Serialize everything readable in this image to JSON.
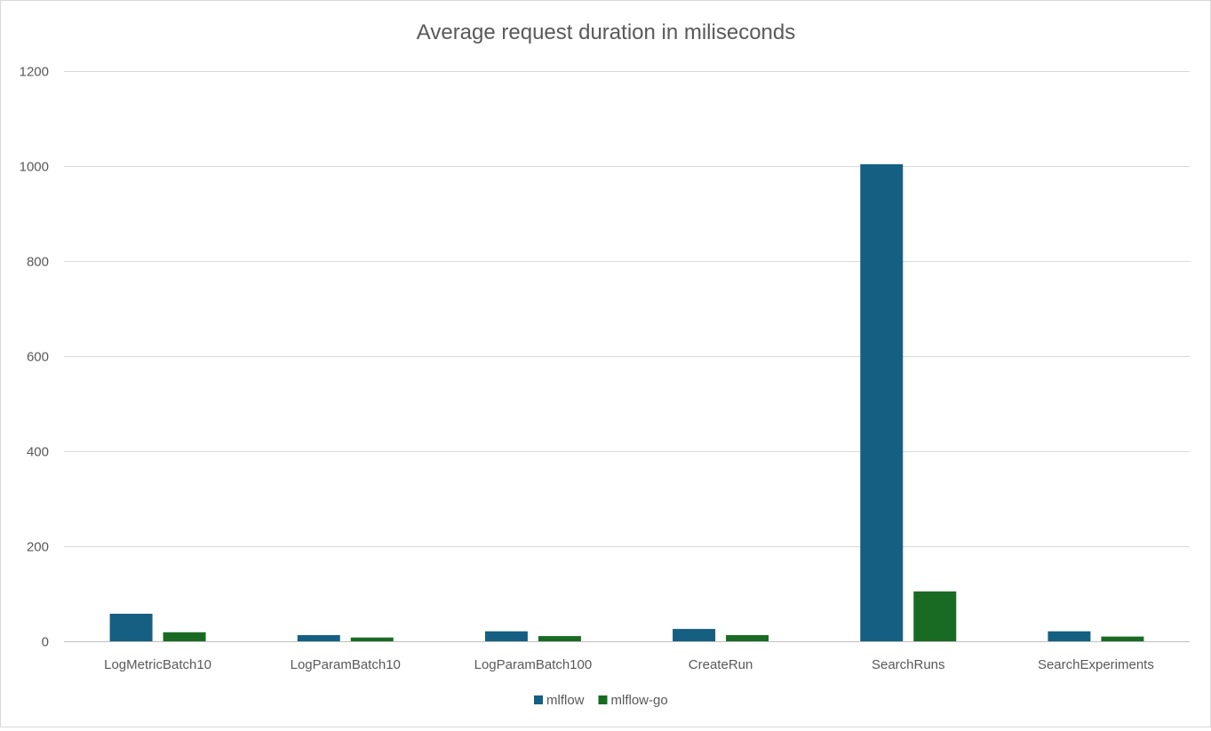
{
  "chart_data": {
    "type": "bar",
    "title": "Average request duration in miliseconds",
    "xlabel": "",
    "ylabel": "",
    "categories": [
      "LogMetricBatch10",
      "LogParamBatch10",
      "LogParamBatch100",
      "CreateRun",
      "SearchRuns",
      "SearchExperiments"
    ],
    "series": [
      {
        "name": "mlflow",
        "color": "#156082",
        "values": [
          58,
          13,
          21,
          26,
          1004,
          21
        ]
      },
      {
        "name": "mlflow-go",
        "color": "#196b24",
        "values": [
          19,
          8,
          11,
          13,
          105,
          10
        ]
      }
    ],
    "ylim": [
      0,
      1200
    ],
    "yticks": [
      0,
      200,
      400,
      600,
      800,
      1000,
      1200
    ],
    "grid": true,
    "legend": "bottom"
  }
}
